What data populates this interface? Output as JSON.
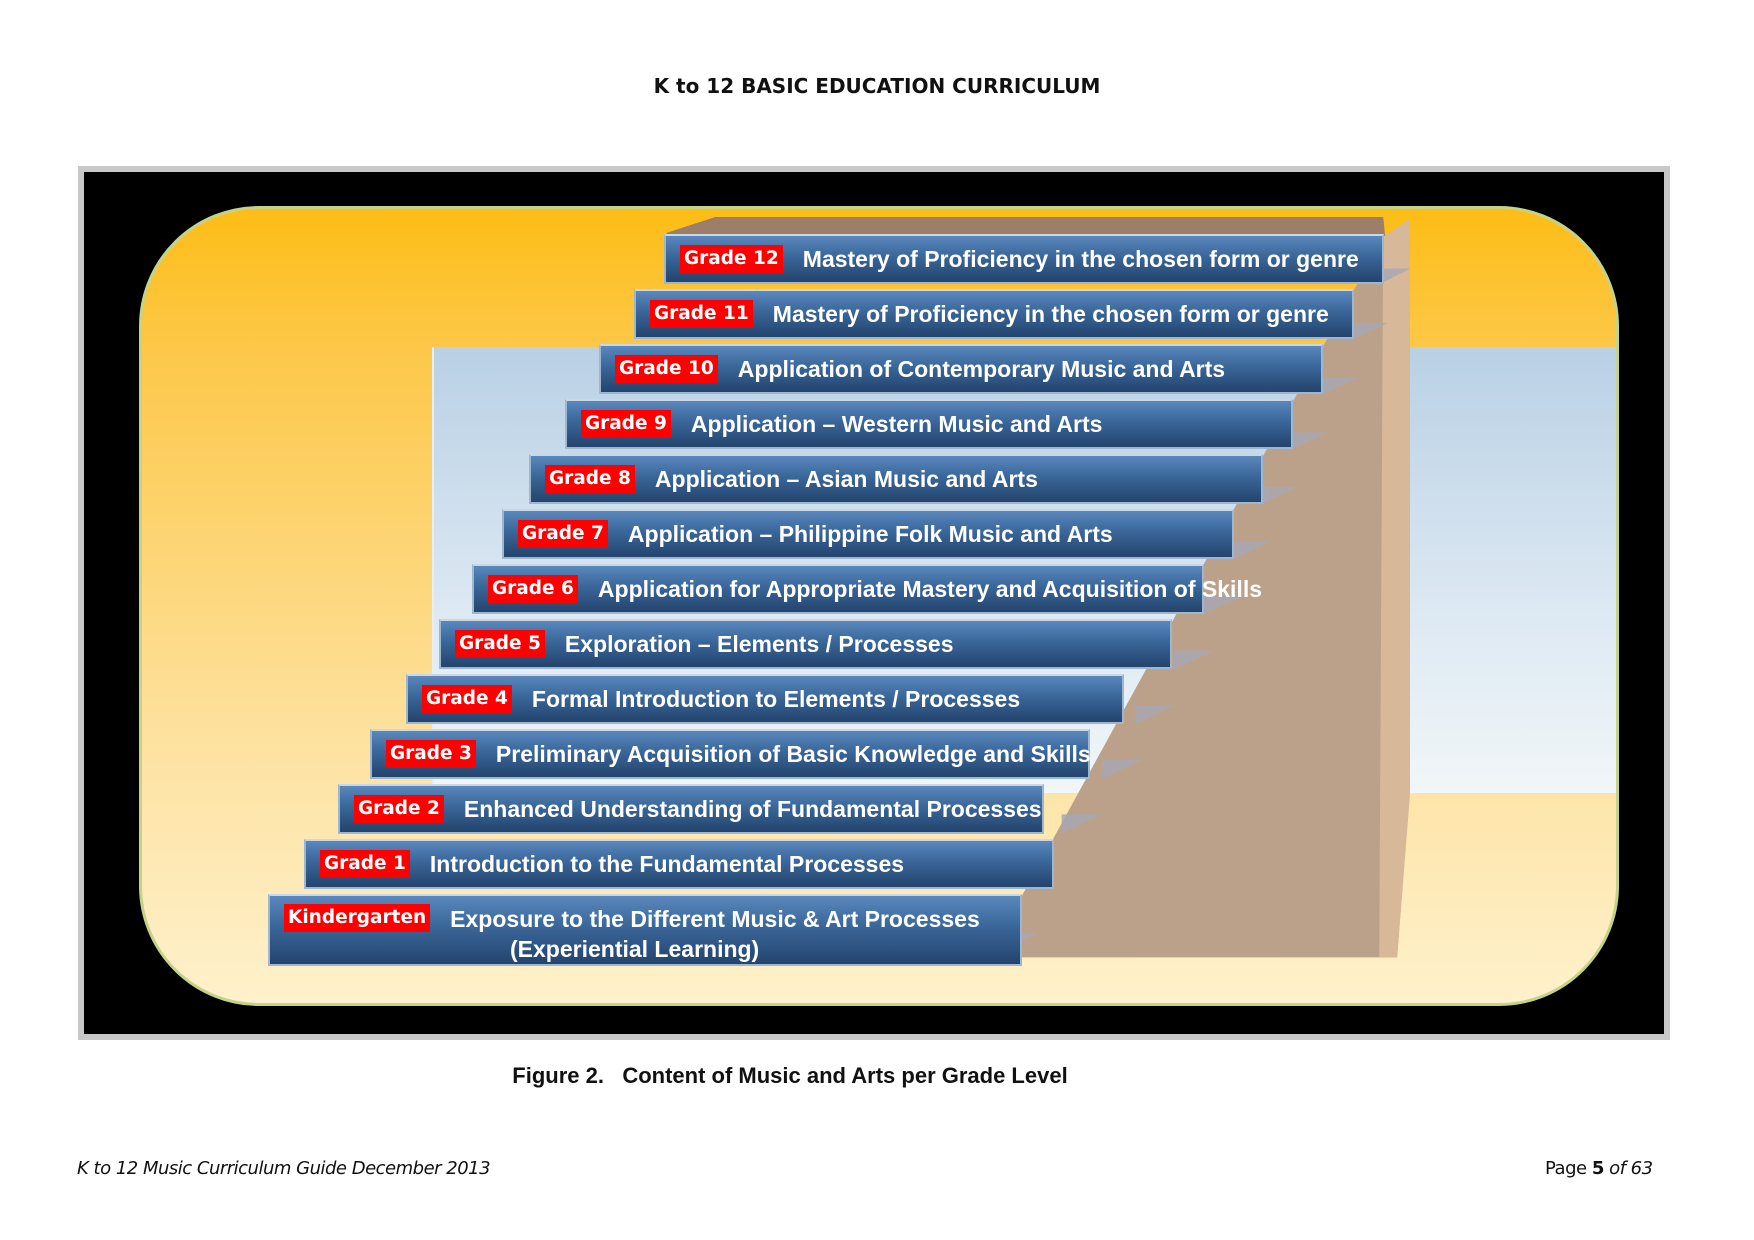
{
  "header": {
    "title": "K to 12 BASIC EDUCATION CURRICULUM"
  },
  "figure": {
    "steps": [
      {
        "grade": "Grade 12",
        "description": "Mastery of Proficiency in the chosen form or genre"
      },
      {
        "grade": "Grade 11",
        "description": "Mastery of Proficiency in the chosen form or genre"
      },
      {
        "grade": "Grade 10",
        "description": "Application of Contemporary Music and Arts"
      },
      {
        "grade": "Grade 9",
        "description": "Application – Western Music and Arts"
      },
      {
        "grade": "Grade 8",
        "description": "Application – Asian Music and Arts"
      },
      {
        "grade": "Grade 7",
        "description": "Application – Philippine Folk Music and Arts"
      },
      {
        "grade": "Grade 6",
        "description": "Application for Appropriate Mastery and Acquisition of Skills"
      },
      {
        "grade": "Grade 5",
        "description": "Exploration – Elements / Processes"
      },
      {
        "grade": "Grade 4",
        "description": "Formal Introduction to Elements / Processes"
      },
      {
        "grade": "Grade 3",
        "description": "Preliminary Acquisition of Basic Knowledge and Skills"
      },
      {
        "grade": "Grade 2",
        "description": "Enhanced Understanding of Fundamental Processes"
      },
      {
        "grade": "Grade 1",
        "description": "Introduction to the Fundamental Processes"
      },
      {
        "grade": "Kindergarten",
        "description": "Exposure to the Different Music & Art Processes",
        "description_line2": "(Experiential Learning)"
      }
    ],
    "caption": "Figure 2.   Content of Music and Arts per Grade Level"
  },
  "footer": {
    "left": "K to 12 Music Curriculum Guide December 2013",
    "page_label": "Page",
    "page_number": "5",
    "page_total": "of 63"
  }
}
